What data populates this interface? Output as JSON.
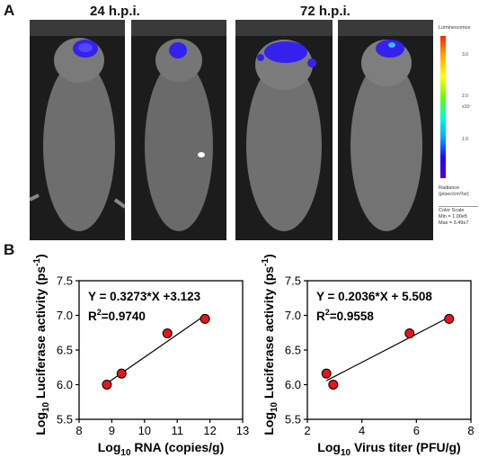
{
  "panels": {
    "a_label": "A",
    "b_label": "B"
  },
  "timepoints": {
    "early": "24 h.p.i.",
    "late": "72 h.p.i."
  },
  "color_scale": {
    "title": "Luminescence",
    "ticks": [
      "3.0",
      "2.0",
      "1.0"
    ],
    "exponent": "x10⁷",
    "unit_line1": "Radiance",
    "unit_line2": "(p/sec/cm²/sr)",
    "footer_title": "Color Scale",
    "min": "Min = 1.00e5",
    "max": "Max = 3.49e7"
  },
  "chart_data": [
    {
      "type": "scatter",
      "x": [
        8.85,
        9.3,
        10.7,
        11.85
      ],
      "y": [
        6.0,
        6.16,
        6.74,
        6.95
      ],
      "fit": {
        "slope": 0.3273,
        "intercept": 3.123
      },
      "equation": "Y = 0.3273*X +3.123",
      "r2_prefix": "R",
      "r2_sup": "2",
      "r2_value": "=0.9740",
      "xlabel_log": "Log",
      "xlabel_sub": "10",
      "xlabel_rest": " RNA (copies/g)",
      "ylabel_log": "Log",
      "ylabel_sub": "10",
      "ylabel_rest": " Luciferase activity (ps",
      "ylabel_sup": "-1",
      "ylabel_end": ")",
      "xlim": [
        8,
        13
      ],
      "ylim": [
        5.5,
        7.5
      ],
      "xticks": [
        "8",
        "9",
        "10",
        "11",
        "12",
        "13"
      ],
      "yticks": [
        "5.5",
        "6.0",
        "6.5",
        "7.0",
        "7.5"
      ],
      "marker_color": "#e8141b"
    },
    {
      "type": "scatter",
      "x": [
        2.7,
        2.95,
        5.75,
        7.2
      ],
      "y": [
        6.16,
        6.0,
        6.74,
        6.95
      ],
      "fit": {
        "slope": 0.2036,
        "intercept": 5.508
      },
      "equation": "Y = 0.2036*X + 5.508",
      "r2_prefix": "R",
      "r2_sup": "2",
      "r2_value": "=0.9558",
      "xlabel_log": "Log",
      "xlabel_sub": "10",
      "xlabel_rest": " Virus titer (PFU/g)",
      "ylabel_log": "Log",
      "ylabel_sub": "10",
      "ylabel_rest": " Luciferase activity (ps",
      "ylabel_sup": "-1",
      "ylabel_end": ")",
      "xlim": [
        2,
        8
      ],
      "ylim": [
        5.5,
        7.5
      ],
      "xticks": [
        "2",
        "4",
        "6",
        "8"
      ],
      "yticks": [
        "5.5",
        "6.0",
        "6.5",
        "7.0",
        "7.5"
      ],
      "marker_color": "#e8141b"
    }
  ]
}
